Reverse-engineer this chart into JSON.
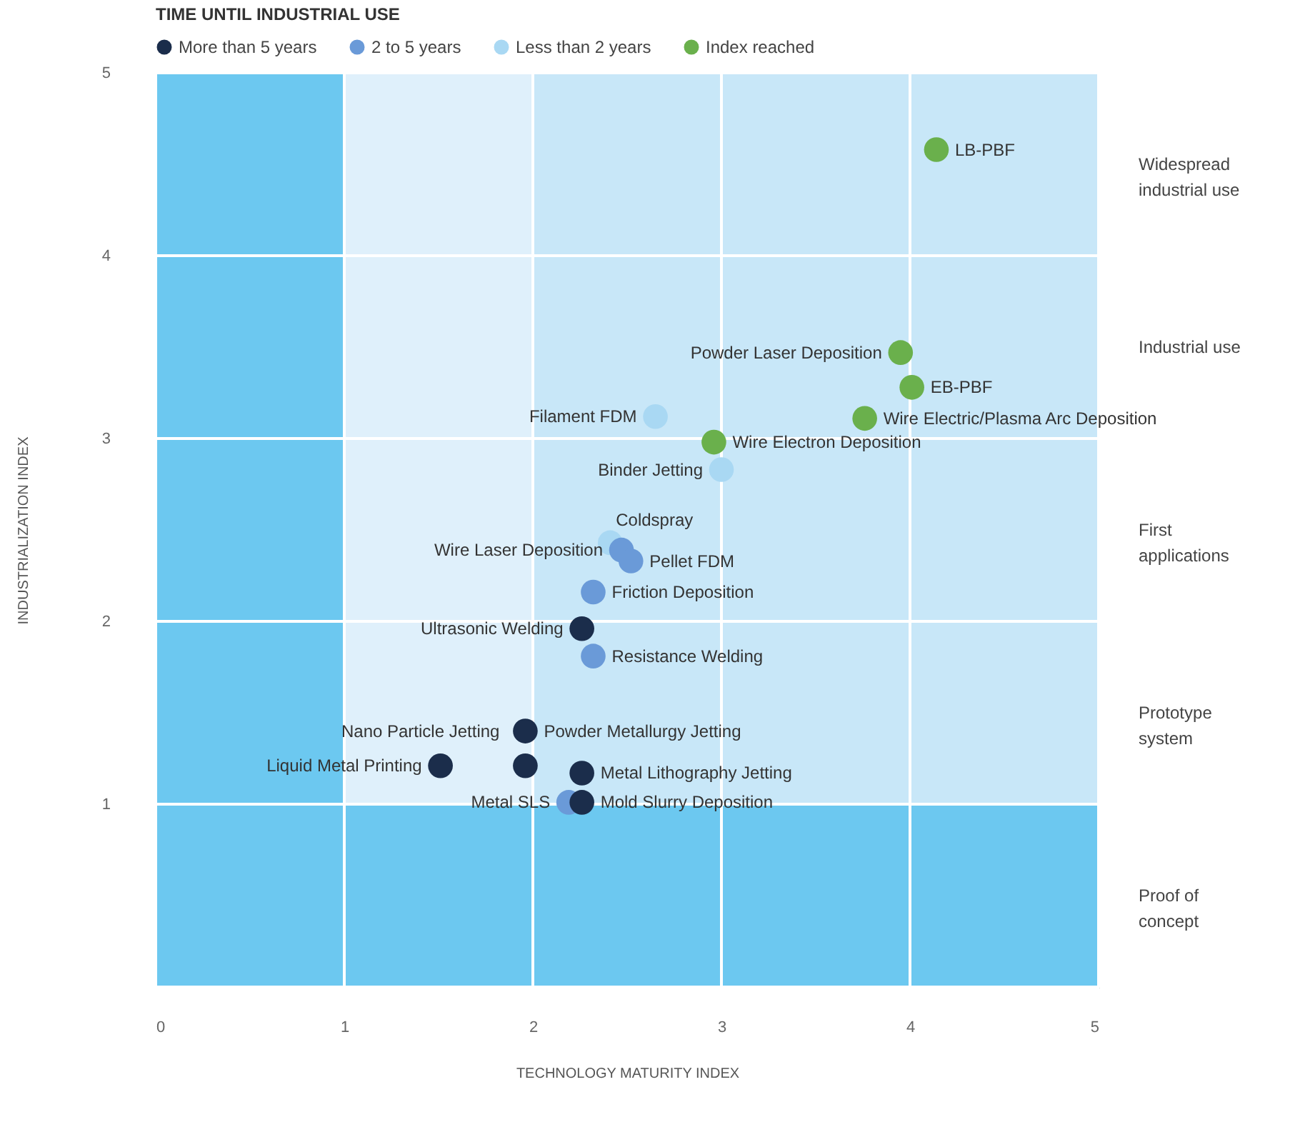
{
  "chart_data": {
    "type": "scatter",
    "xlabel": "TECHNOLOGY MATURITY INDEX",
    "ylabel": "INDUSTRIALIZATION INDEX",
    "legend_title": "TIME UNTIL INDUSTRIAL USE",
    "xlim": [
      0,
      5
    ],
    "ylim": [
      0,
      5
    ],
    "xticks": [
      0,
      1,
      2,
      3,
      4,
      5
    ],
    "yticks": [
      {
        "value": 0,
        "label": null
      },
      1,
      2,
      3,
      4,
      5
    ],
    "grid": true,
    "legend": "top",
    "marker": "circle",
    "series": [
      {
        "name": "More than 5 years",
        "color": "#1b2d4b",
        "x": [
          2.26,
          1.96,
          1.96,
          1.51,
          2.26,
          2.26
        ],
        "values": [
          1.96,
          1.4,
          1.21,
          1.21,
          1.17,
          1.01
        ]
      },
      {
        "name": "2 to 5 years",
        "color": "#6a9ad8",
        "x": [
          2.47,
          2.52,
          2.32,
          2.32,
          2.19
        ],
        "values": [
          2.39,
          2.33,
          2.16,
          1.81,
          1.01
        ]
      },
      {
        "name": "Less than 2 years",
        "color": "#a9d8f3",
        "x": [
          2.65,
          3.0,
          2.41
        ],
        "values": [
          3.12,
          2.83,
          2.43
        ]
      },
      {
        "name": "Index reached",
        "color": "#6ab04c",
        "x": [
          4.14,
          3.95,
          4.01,
          3.76,
          2.96
        ],
        "values": [
          4.58,
          3.47,
          3.28,
          3.11,
          2.98
        ]
      }
    ],
    "annotations": [
      {
        "text": "Ultrasonic Welding",
        "x": 2.26,
        "y": 1.96
      },
      {
        "text": "Powder Metallurgy Jetting",
        "x": 1.96,
        "y": 1.4
      },
      {
        "text": "Nano Particle Jetting",
        "x": 1.96,
        "y": 1.21
      },
      {
        "text": "Liquid Metal Printing",
        "x": 1.51,
        "y": 1.21
      },
      {
        "text": "Metal Lithography Jetting",
        "x": 2.26,
        "y": 1.17
      },
      {
        "text": "Mold Slurry Deposition",
        "x": 2.26,
        "y": 1.01
      },
      {
        "text": "Wire Laser Deposition",
        "x": 2.47,
        "y": 2.39
      },
      {
        "text": "Pellet FDM",
        "x": 2.52,
        "y": 2.33
      },
      {
        "text": "Friction Deposition",
        "x": 2.32,
        "y": 2.16
      },
      {
        "text": "Resistance Welding",
        "x": 2.32,
        "y": 1.81
      },
      {
        "text": "Metal SLS",
        "x": 2.19,
        "y": 1.01
      },
      {
        "text": "Filament FDM",
        "x": 2.65,
        "y": 3.12
      },
      {
        "text": "Binder Jetting",
        "x": 3.0,
        "y": 2.83
      },
      {
        "text": "Coldspray",
        "x": 2.41,
        "y": 2.43
      },
      {
        "text": "LB-PBF",
        "x": 4.14,
        "y": 4.58
      },
      {
        "text": "Powder Laser Deposition",
        "x": 3.95,
        "y": 3.47
      },
      {
        "text": "EB-PBF",
        "x": 4.01,
        "y": 3.28
      },
      {
        "text": "Wire Electric/Plasma Arc Deposition",
        "x": 3.76,
        "y": 3.11
      },
      {
        "text": "Wire Electron Deposition",
        "x": 2.96,
        "y": 2.98
      }
    ],
    "bands": [
      {
        "axis": "y",
        "from": 1,
        "to": 2,
        "color": "#c8e7f8",
        "label": "Prototype system"
      },
      {
        "axis": "y",
        "from": 2,
        "to": 3,
        "color": "#c8e7f8",
        "label": "First applications"
      },
      {
        "axis": "y",
        "from": 3,
        "to": 4,
        "color": "#c8e7f8",
        "label": "Industrial use"
      },
      {
        "axis": "y",
        "from": 4,
        "to": 5,
        "color": "#c8e7f8",
        "label": "Widespread industrial use"
      },
      {
        "axis": "x",
        "from": 1,
        "to": 2,
        "color": "#dff0fb"
      },
      {
        "axis": "y",
        "from": 0,
        "to": 1,
        "color": "#6cc8f0",
        "label": "Proof of concept"
      },
      {
        "axis": "x",
        "from": 0,
        "to": 1,
        "color": "#6cc8f0"
      }
    ]
  }
}
